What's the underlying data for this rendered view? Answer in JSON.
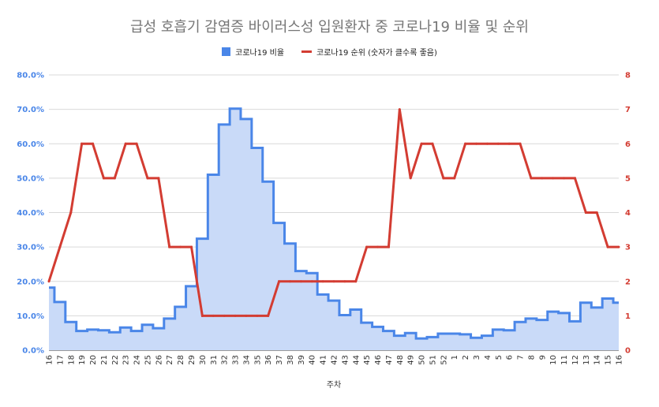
{
  "chart_data": {
    "type": "line",
    "title": "급성 호흡기 감염증 바이러스성 입원환자 중 코로나19 비율 및 순위",
    "xlabel": "주차",
    "ylabel_left": "",
    "ylabel_right": "",
    "ylim_left": [
      0,
      80
    ],
    "ylim_right": [
      0,
      8
    ],
    "yticks_left": [
      "0.0%",
      "10.0%",
      "20.0%",
      "30.0%",
      "40.0%",
      "50.0%",
      "60.0%",
      "70.0%",
      "80.0%"
    ],
    "yticks_right": [
      "0",
      "1",
      "2",
      "3",
      "4",
      "5",
      "6",
      "7",
      "8"
    ],
    "grid": true,
    "legend_position": "top",
    "categories": [
      "16",
      "17",
      "18",
      "19",
      "20",
      "21",
      "22",
      "23",
      "24",
      "25",
      "26",
      "27",
      "28",
      "29",
      "30",
      "31",
      "32",
      "33",
      "34",
      "35",
      "36",
      "37",
      "38",
      "39",
      "40",
      "41",
      "42",
      "43",
      "44",
      "45",
      "46",
      "47",
      "48",
      "49",
      "50",
      "51",
      "52",
      "1",
      "2",
      "3",
      "4",
      "5",
      "6",
      "7",
      "8",
      "9",
      "10",
      "11",
      "12",
      "13",
      "14",
      "15",
      "16"
    ],
    "series": [
      {
        "name": "코로나19 비율",
        "type": "stepped-area",
        "axis": "left",
        "color": "#4a86e8",
        "fill": "#c9daf8",
        "values": [
          18.2,
          14.0,
          8.2,
          5.6,
          6.0,
          5.8,
          5.2,
          6.6,
          5.6,
          7.4,
          6.4,
          9.2,
          12.6,
          18.6,
          32.4,
          51.0,
          65.6,
          70.2,
          67.2,
          58.8,
          49.0,
          37.0,
          31.0,
          23.0,
          22.4,
          16.2,
          14.4,
          10.2,
          11.8,
          8.0,
          6.8,
          5.6,
          4.2,
          5.0,
          3.4,
          3.8,
          4.8,
          4.8,
          4.6,
          3.6,
          4.2,
          6.0,
          5.8,
          8.2,
          9.2,
          8.8,
          11.2,
          10.8,
          8.4,
          13.8,
          12.4,
          15.0,
          13.8
        ]
      },
      {
        "name": "코로나19 순위 (숫자가 클수록 좋음)",
        "type": "line",
        "axis": "right",
        "color": "#d33c32",
        "values": [
          2,
          3,
          4,
          6,
          6,
          5,
          5,
          6,
          6,
          5,
          5,
          3,
          3,
          3,
          1,
          1,
          1,
          1,
          1,
          1,
          1,
          2,
          2,
          2,
          2,
          2,
          2,
          2,
          2,
          3,
          3,
          3,
          7,
          5,
          6,
          6,
          5,
          5,
          6,
          6,
          6,
          6,
          6,
          6,
          5,
          5,
          5,
          5,
          5,
          4,
          4,
          3,
          3
        ]
      }
    ]
  }
}
